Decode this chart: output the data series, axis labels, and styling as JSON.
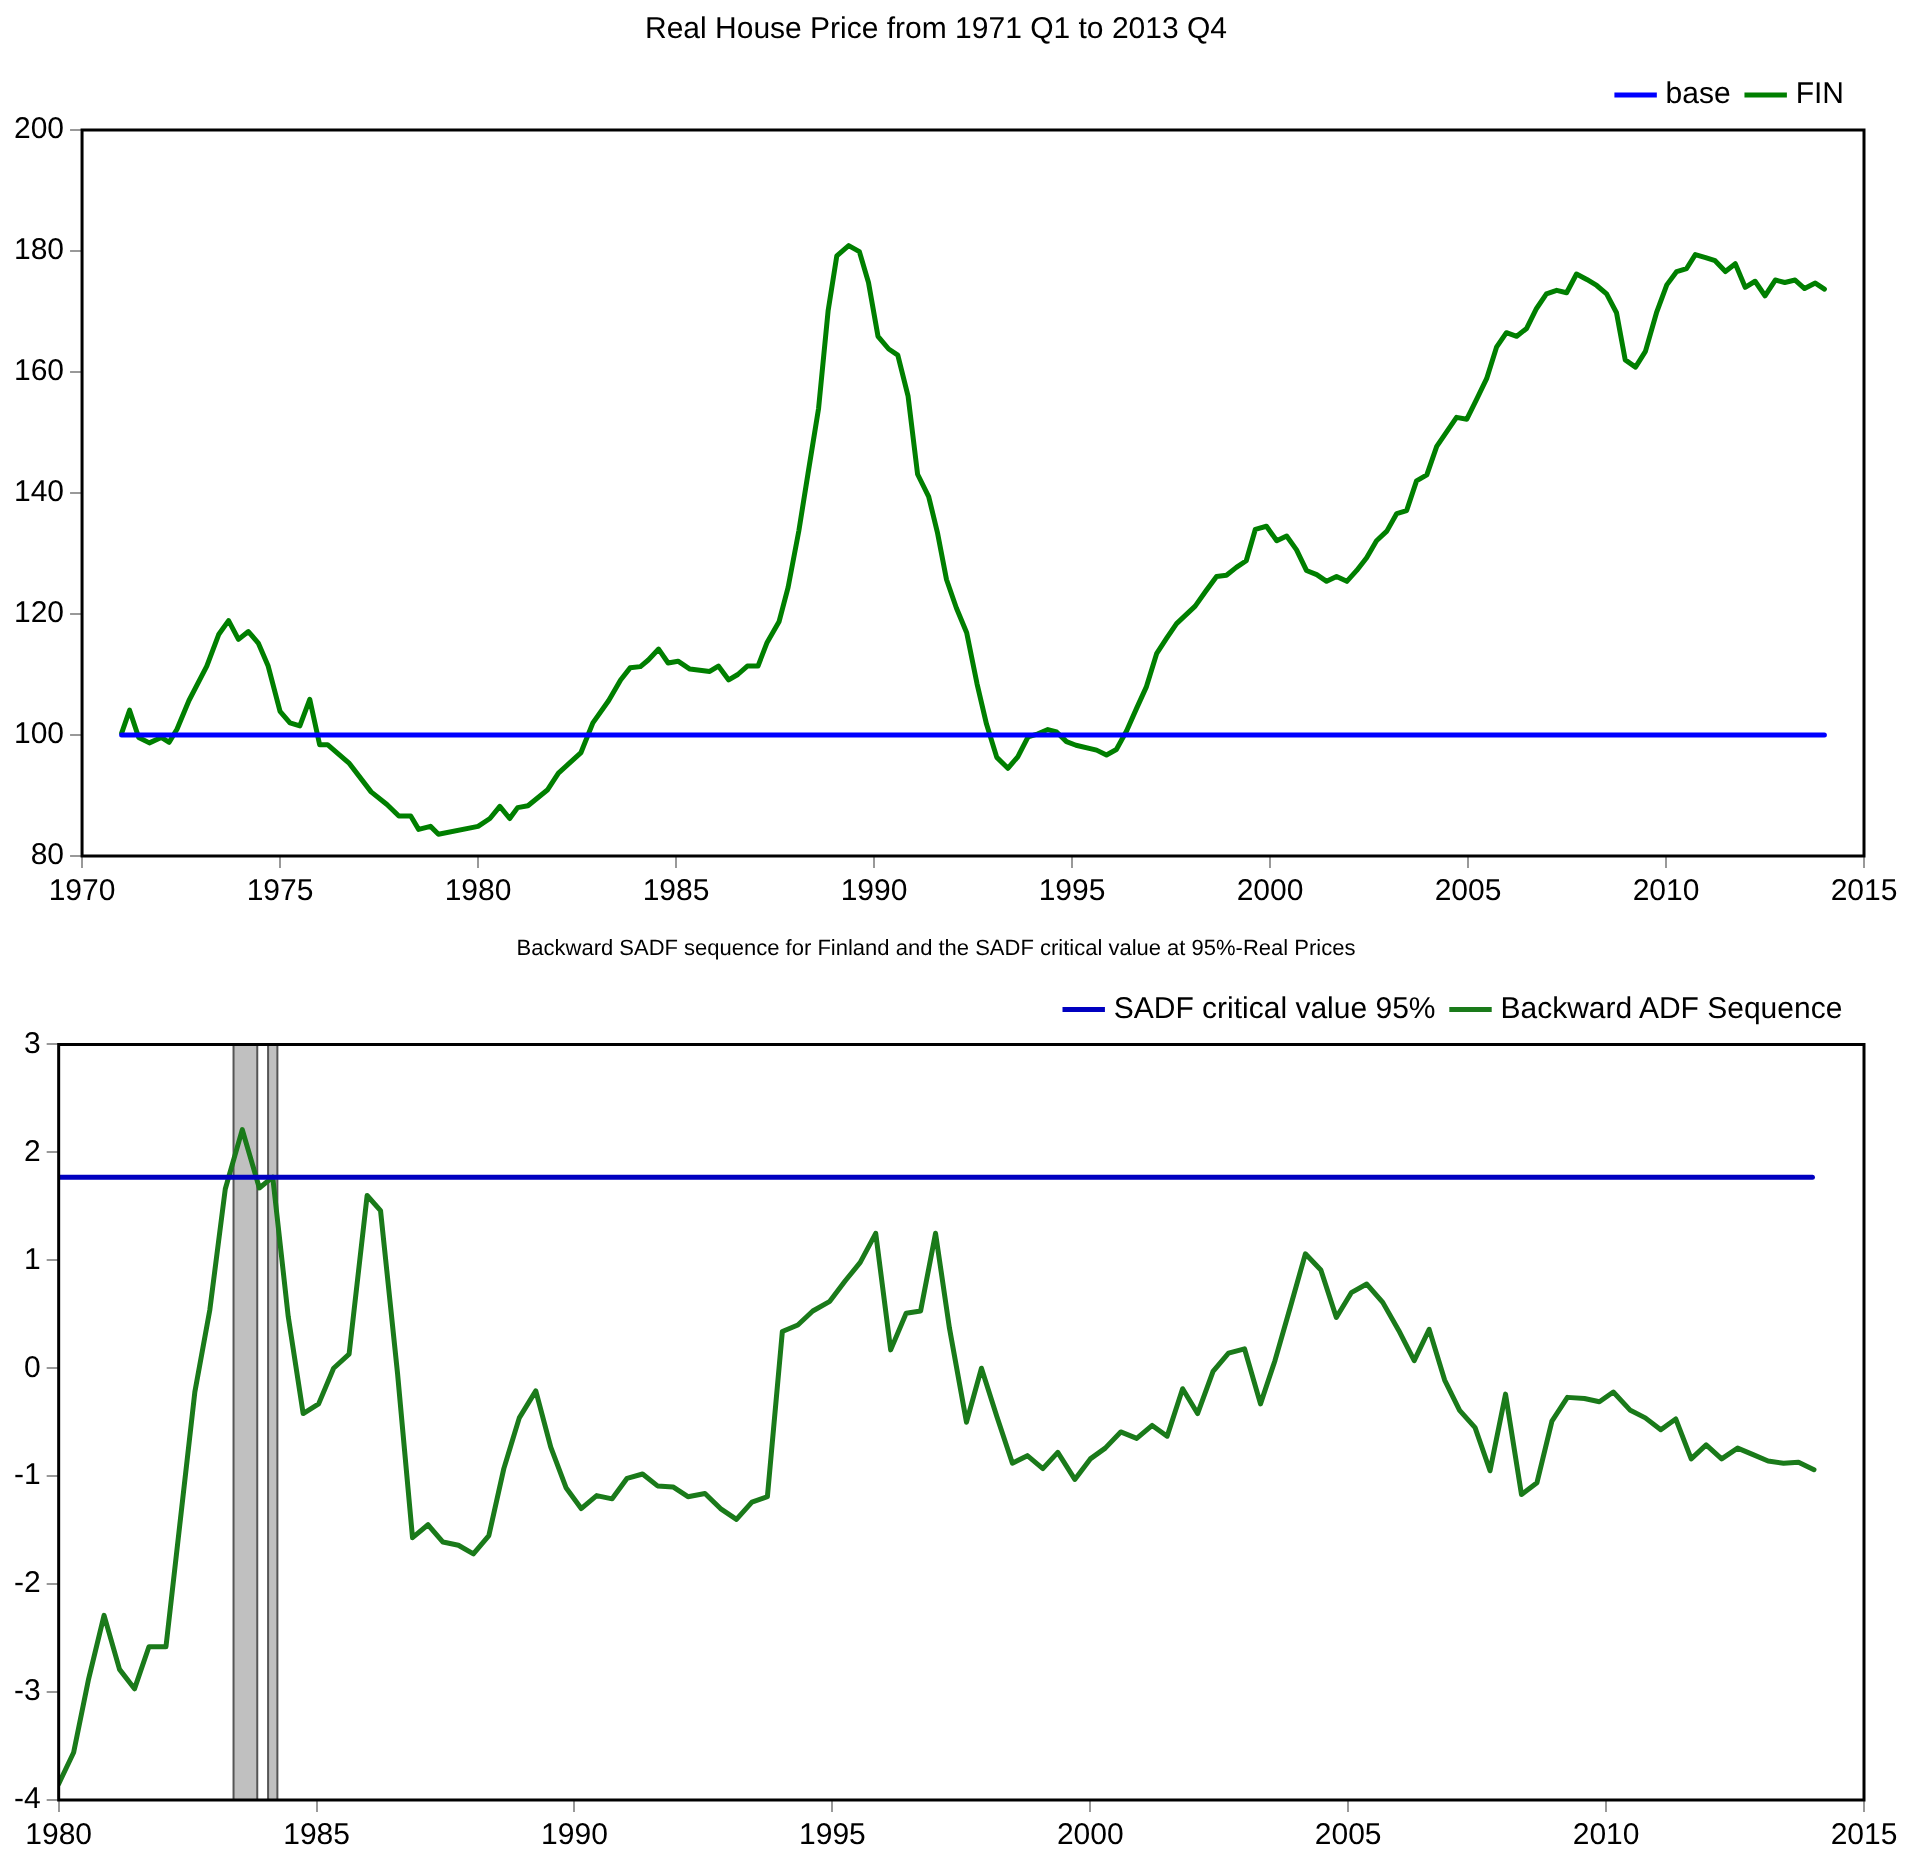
{
  "chart_data": [
    {
      "type": "line",
      "title": "Real House Price from 1971 Q1 to 2013 Q4",
      "xlim": [
        1970,
        2015
      ],
      "xticks": [
        1970,
        1975,
        1980,
        1985,
        1990,
        1995,
        2000,
        2005,
        2010,
        2015
      ],
      "ylim": [
        80,
        200
      ],
      "yticks": [
        80,
        100,
        120,
        140,
        160,
        180,
        200
      ],
      "grid": false,
      "legend": "top right",
      "marker": "none",
      "line_style": "solid",
      "series": [
        {
          "name": "base",
          "color": "#0000ff",
          "x": [
            1971,
            2014
          ],
          "values": [
            100,
            100
          ]
        },
        {
          "name": "FIN",
          "color": "#007f00",
          "x": [
            1971.0,
            1971.2,
            1971.43,
            1971.7,
            1972.0,
            1972.2,
            1972.4,
            1972.7,
            1973.15,
            1973.45,
            1973.7,
            1973.95,
            1974.2,
            1974.45,
            1974.7,
            1975.0,
            1975.25,
            1975.5,
            1975.75,
            1976.0,
            1976.2,
            1976.75,
            1977.3,
            1977.7,
            1978.0,
            1978.3,
            1978.5,
            1978.8,
            1979.0,
            1980.0,
            1980.3,
            1980.55,
            1980.8,
            1981.0,
            1981.26,
            1981.75,
            1982.03,
            1982.3,
            1982.6,
            1982.9,
            1983.3,
            1983.6,
            1983.84,
            1984.1,
            1984.3,
            1984.56,
            1984.8,
            1985.05,
            1985.35,
            1985.85,
            1986.07,
            1986.33,
            1986.56,
            1986.8,
            1987.07,
            1987.3,
            1987.6,
            1987.83,
            1988.1,
            1988.33,
            1988.6,
            1988.84,
            1989.06,
            1989.36,
            1989.63,
            1989.86,
            1990.1,
            1990.37,
            1990.6,
            1990.86,
            1991.1,
            1991.38,
            1991.6,
            1991.83,
            1992.08,
            1992.34,
            1992.6,
            1992.84,
            1993.1,
            1993.38,
            1993.63,
            1993.89,
            1994.14,
            1994.39,
            1994.61,
            1994.86,
            1995.1,
            1995.62,
            1995.87,
            1996.12,
            1996.38,
            1996.63,
            1996.88,
            1997.14,
            1997.39,
            1997.64,
            1998.11,
            1998.38,
            1998.65,
            1998.9,
            1999.15,
            1999.4,
            1999.63,
            1999.91,
            2000.17,
            2000.42,
            2000.67,
            2000.92,
            2001.18,
            2001.43,
            2001.68,
            2001.94,
            2002.19,
            2002.44,
            2002.69,
            2002.95,
            2003.2,
            2003.45,
            2003.7,
            2003.96,
            2004.21,
            2004.46,
            2004.71,
            2004.97,
            2005.22,
            2005.47,
            2005.72,
            2005.97,
            2006.23,
            2006.48,
            2006.73,
            2006.98,
            2007.24,
            2007.49,
            2007.74,
            2008.0,
            2008.25,
            2008.5,
            2008.75,
            2008.97,
            2009.23,
            2009.48,
            2009.76,
            2010.02,
            2010.27,
            2010.52,
            2010.74,
            2011.0,
            2011.24,
            2011.5,
            2011.75,
            2012.0,
            2012.25,
            2012.5,
            2012.76,
            2013.0,
            2013.26,
            2013.5,
            2013.77,
            2014.0
          ],
          "values": [
            100.3,
            104.1,
            99.6,
            98.7,
            99.6,
            98.8,
            101,
            105.7,
            111.4,
            116.6,
            118.9,
            115.8,
            117.1,
            115.2,
            111.4,
            103.9,
            102,
            101.5,
            105.9,
            98.4,
            98.4,
            95.3,
            90.6,
            88.5,
            86.6,
            86.6,
            84.4,
            84.9,
            83.6,
            84.9,
            86.2,
            88.2,
            86.2,
            88,
            88.3,
            90.9,
            93.7,
            95.3,
            97.1,
            102,
            105.7,
            109.1,
            111.1,
            111.3,
            112.4,
            114.2,
            111.9,
            112.2,
            110.9,
            110.5,
            111.4,
            109.1,
            110,
            111.4,
            111.4,
            115.3,
            118.7,
            124.4,
            133.7,
            143.1,
            154,
            170.1,
            179.2,
            180.9,
            179.9,
            174.8,
            165.9,
            163.8,
            162.8,
            156,
            143.1,
            139.4,
            133.5,
            125.7,
            121,
            116.9,
            108.5,
            101.8,
            96.3,
            94.5,
            96.4,
            99.7,
            100.2,
            100.9,
            100.5,
            98.9,
            98.3,
            97.5,
            96.7,
            97.6,
            100.7,
            104.4,
            108,
            113.5,
            116,
            118.4,
            121.3,
            123.8,
            126.2,
            126.4,
            127.7,
            128.8,
            134,
            134.5,
            132.1,
            132.9,
            130.6,
            127.2,
            126.5,
            125.4,
            126.2,
            125.4,
            127.2,
            129.3,
            132.1,
            133.7,
            136.6,
            137.1,
            142,
            143,
            147.7,
            150.1,
            152.5,
            152.2,
            155.5,
            158.9,
            164.1,
            166.5,
            165.9,
            167.2,
            170.5,
            172.9,
            173.5,
            173.1,
            176.2,
            175.3,
            174.3,
            172.9,
            169.8,
            162,
            160.8,
            163.4,
            169.8,
            174.4,
            176.6,
            177.1,
            179.4,
            178.9,
            178.4,
            176.6,
            177.9,
            174,
            175,
            172.6,
            175.2,
            174.8,
            175.2,
            173.8,
            174.7,
            173.7
          ]
        }
      ]
    },
    {
      "type": "line",
      "title": "Backward SADF sequence for Finland and the SADF critical value at 95%-Real Prices",
      "xlim": [
        1980,
        2015
      ],
      "xticks": [
        1980,
        1985,
        1990,
        1995,
        2000,
        2005,
        2010,
        2015
      ],
      "ylim": [
        -4,
        3
      ],
      "yticks": [
        -4,
        -3,
        -2,
        -1,
        0,
        1,
        2,
        3
      ],
      "grid": false,
      "legend": "top right",
      "marker": "none",
      "line_style": "solid",
      "bands": [
        {
          "axis": "x",
          "from": 1983.39,
          "to": 1983.85,
          "color": "#c0c0c0"
        },
        {
          "axis": "x",
          "from": 1984.06,
          "to": 1984.24,
          "color": "#c0c0c0"
        }
      ],
      "series": [
        {
          "name": "SADF critical value 95%",
          "color": "#0000c0",
          "x": [
            1980,
            2014
          ],
          "values": [
            1.77,
            1.77
          ]
        },
        {
          "name": "Backward ADF Sequence",
          "color": "#1a7a1a",
          "x": [
            1980.0,
            1980.29,
            1980.58,
            1980.88,
            1981.18,
            1981.47,
            1981.75,
            1982.08,
            1982.36,
            1982.64,
            1982.93,
            1983.23,
            1983.56,
            1983.89,
            1984.15,
            1984.45,
            1984.74,
            1985.04,
            1985.33,
            1985.63,
            1985.98,
            1986.24,
            1986.57,
            1986.86,
            1987.16,
            1987.45,
            1987.75,
            1988.04,
            1988.34,
            1988.63,
            1988.93,
            1989.25,
            1989.54,
            1989.84,
            1990.13,
            1990.43,
            1990.73,
            1991.02,
            1991.32,
            1991.61,
            1991.91,
            1992.2,
            1992.53,
            1992.83,
            1993.14,
            1993.44,
            1993.74,
            1994.03,
            1994.33,
            1994.62,
            1994.95,
            1995.25,
            1995.54,
            1995.84,
            1996.13,
            1996.43,
            1996.71,
            1997.0,
            1997.27,
            1997.6,
            1997.89,
            1998.19,
            1998.49,
            1998.78,
            1999.08,
            1999.37,
            1999.7,
            2000.0,
            2000.29,
            2000.59,
            2000.9,
            2001.2,
            2001.49,
            2001.79,
            2002.08,
            2002.38,
            2002.68,
            2002.99,
            2003.3,
            2003.58,
            2003.88,
            2004.17,
            2004.47,
            2004.77,
            2005.06,
            2005.36,
            2005.67,
            2005.98,
            2006.28,
            2006.57,
            2006.87,
            2007.16,
            2007.46,
            2007.75,
            2008.05,
            2008.36,
            2008.66,
            2008.95,
            2009.25,
            2009.58,
            2009.87,
            2010.14,
            2010.47,
            2010.76,
            2011.06,
            2011.35,
            2011.65,
            2011.94,
            2012.24,
            2012.55,
            2012.85,
            2013.14,
            2013.44,
            2013.73,
            2014.03
          ],
          "values": [
            -3.85,
            -3.56,
            -2.88,
            -2.29,
            -2.79,
            -2.97,
            -2.58,
            -2.58,
            -1.4,
            -0.22,
            0.54,
            1.66,
            2.21,
            1.67,
            1.77,
            0.48,
            -0.42,
            -0.33,
            0.0,
            0.13,
            1.6,
            1.46,
            -0.05,
            -1.57,
            -1.45,
            -1.61,
            -1.64,
            -1.72,
            -1.55,
            -0.93,
            -0.46,
            -0.21,
            -0.73,
            -1.11,
            -1.3,
            -1.18,
            -1.21,
            -1.02,
            -0.98,
            -1.09,
            -1.1,
            -1.19,
            -1.16,
            -1.3,
            -1.4,
            -1.24,
            -1.19,
            0.34,
            0.4,
            0.53,
            0.62,
            0.81,
            0.98,
            1.25,
            0.17,
            0.51,
            0.53,
            1.25,
            0.37,
            -0.5,
            0.0,
            -0.45,
            -0.88,
            -0.81,
            -0.93,
            -0.78,
            -1.03,
            -0.84,
            -0.74,
            -0.59,
            -0.65,
            -0.53,
            -0.63,
            -0.19,
            -0.42,
            -0.03,
            0.14,
            0.18,
            -0.33,
            0.07,
            0.57,
            1.06,
            0.91,
            0.47,
            0.7,
            0.78,
            0.61,
            0.35,
            0.07,
            0.36,
            -0.11,
            -0.39,
            -0.55,
            -0.95,
            -0.24,
            -1.17,
            -1.06,
            -0.49,
            -0.27,
            -0.28,
            -0.31,
            -0.22,
            -0.39,
            -0.46,
            -0.57,
            -0.47,
            -0.84,
            -0.71,
            -0.84,
            -0.74,
            -0.8,
            -0.86,
            -0.88,
            -0.87,
            -0.94
          ]
        }
      ]
    }
  ]
}
